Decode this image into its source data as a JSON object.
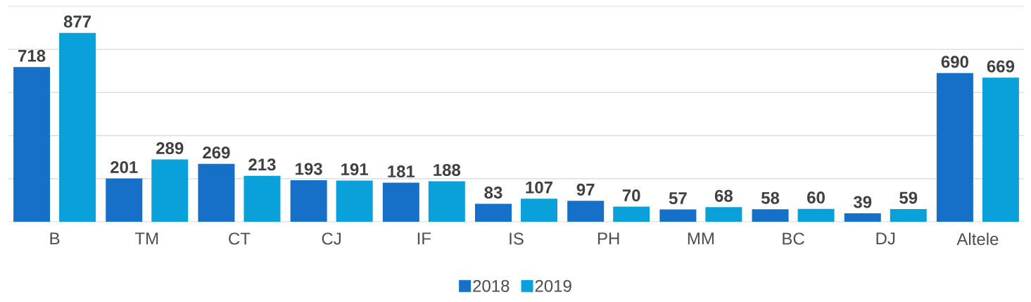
{
  "chart_data": {
    "type": "bar",
    "categories": [
      "B",
      "TM",
      "CT",
      "CJ",
      "IF",
      "IS",
      "PH",
      "MM",
      "BC",
      "DJ",
      "Altele"
    ],
    "series": [
      {
        "name": "2018",
        "color": "#1770c8",
        "values": [
          718,
          201,
          269,
          193,
          181,
          83,
          97,
          57,
          58,
          39,
          690
        ]
      },
      {
        "name": "2019",
        "color": "#0aa0da",
        "values": [
          877,
          289,
          213,
          191,
          188,
          107,
          70,
          68,
          60,
          59,
          669
        ]
      }
    ],
    "ylim": [
      0,
      1000
    ],
    "yticks": [
      {
        "value": 0,
        "label": null
      },
      {
        "value": 200,
        "label": null
      },
      {
        "value": 400,
        "label": null
      },
      {
        "value": 600,
        "label": null
      },
      {
        "value": 800,
        "label": null
      },
      {
        "value": 1000,
        "label": null
      }
    ],
    "tick_labels": "x",
    "grid": "y",
    "legend": "bottom",
    "data_labels": true
  }
}
